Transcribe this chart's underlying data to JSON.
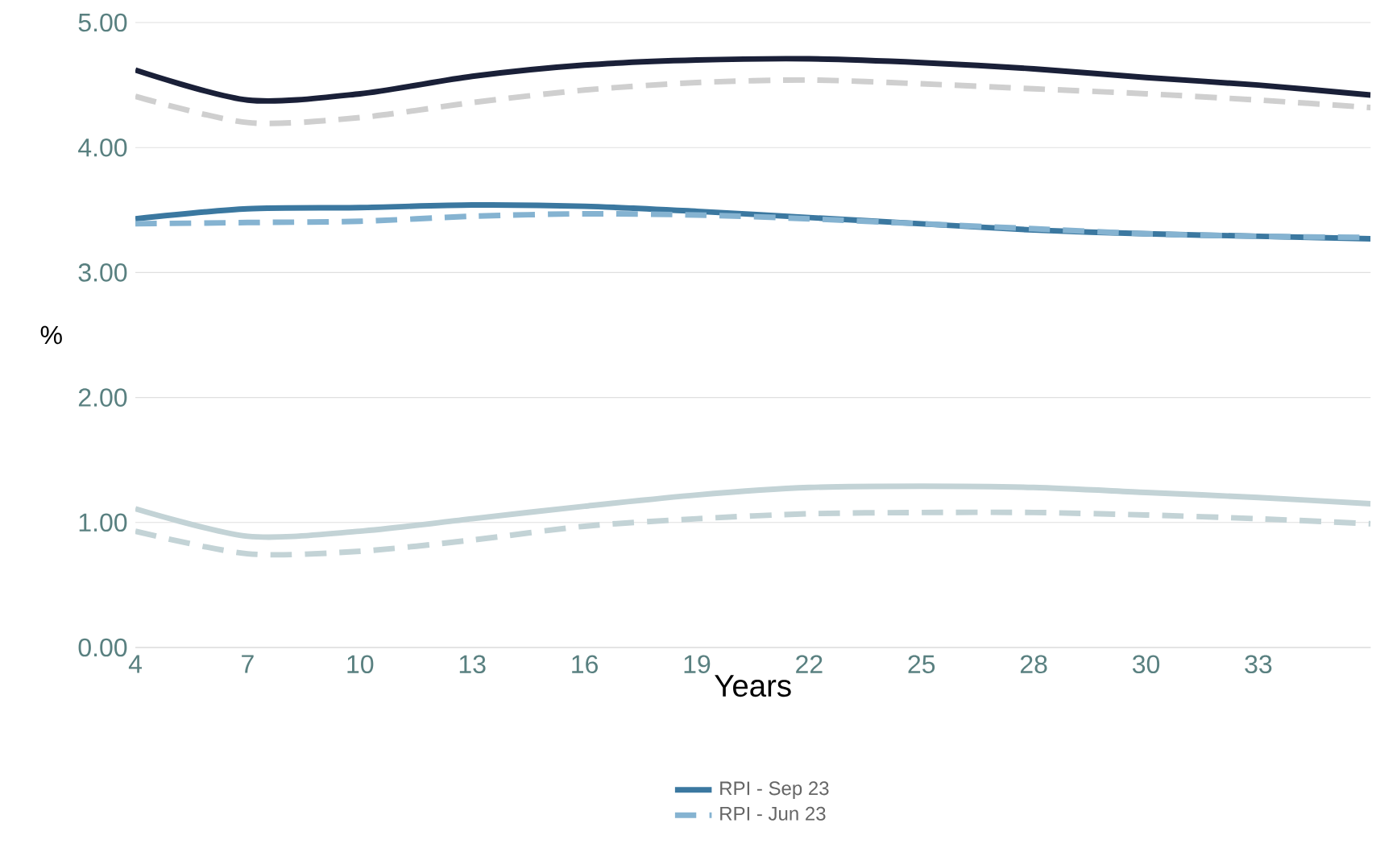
{
  "chart_data": {
    "type": "line",
    "xlabel": "Years",
    "ylabel": "%",
    "categories": [
      "4",
      "7",
      "10",
      "13",
      "16",
      "19",
      "22",
      "25",
      "28",
      "30",
      "33",
      null
    ],
    "ylim": [
      0,
      5
    ],
    "yticks": [
      {
        "value": 0,
        "label": "0.00"
      },
      {
        "value": 1,
        "label": "1.00"
      },
      {
        "value": 2,
        "label": "2.00"
      },
      {
        "value": 3,
        "label": "3.00"
      },
      {
        "value": 4,
        "label": "4.00"
      },
      {
        "value": 5,
        "label": "5.00"
      }
    ],
    "grid": "y",
    "legend": "bottom",
    "marker": "none",
    "series": [
      {
        "color": "#1a2038",
        "line_style": "solid",
        "values": [
          4.62,
          4.38,
          4.43,
          4.57,
          4.66,
          4.7,
          4.71,
          4.68,
          4.63,
          4.56,
          4.5,
          4.42
        ]
      },
      {
        "color": "#cfcfcf",
        "line_style": "dashed",
        "values": [
          4.41,
          4.2,
          4.24,
          4.36,
          4.46,
          4.52,
          4.54,
          4.51,
          4.47,
          4.43,
          4.38,
          4.32
        ]
      },
      {
        "name": "RPI - Sep 23",
        "color": "#3b78a0",
        "line_style": "solid",
        "values": [
          3.43,
          3.51,
          3.52,
          3.54,
          3.53,
          3.49,
          3.44,
          3.39,
          3.34,
          3.31,
          3.29,
          3.27
        ]
      },
      {
        "name": "RPI - Jun 23",
        "color": "#85b3d1",
        "line_style": "dashed",
        "values": [
          3.39,
          3.4,
          3.41,
          3.45,
          3.47,
          3.46,
          3.43,
          3.39,
          3.35,
          3.31,
          3.29,
          3.28
        ]
      },
      {
        "color": "#c3d3d6",
        "line_style": "solid",
        "values": [
          1.11,
          0.89,
          0.93,
          1.03,
          1.13,
          1.22,
          1.28,
          1.29,
          1.28,
          1.24,
          1.2,
          1.15
        ]
      },
      {
        "color": "#c3d3d6",
        "line_style": "dashed",
        "values": [
          0.93,
          0.75,
          0.77,
          0.86,
          0.97,
          1.03,
          1.07,
          1.08,
          1.08,
          1.06,
          1.03,
          0.99
        ]
      }
    ]
  }
}
